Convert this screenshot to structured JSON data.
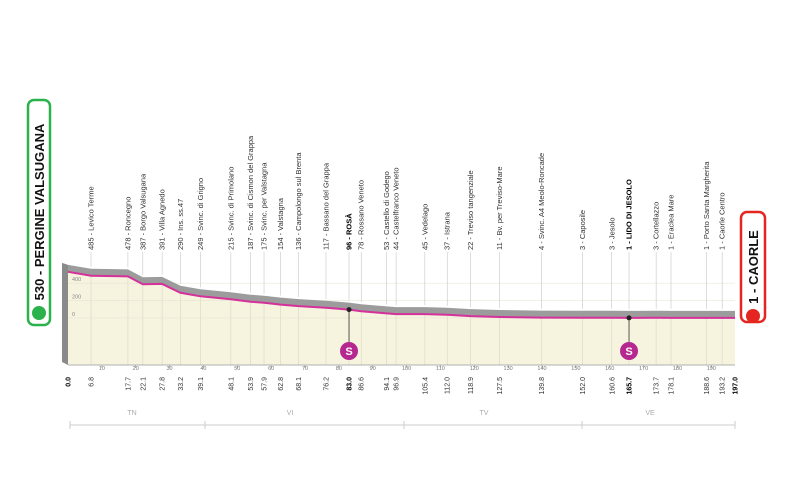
{
  "chart_data": {
    "type": "area",
    "x": [
      0,
      6.8,
      17.7,
      22.1,
      27.8,
      33.2,
      39.1,
      48.1,
      53.9,
      57.9,
      62.8,
      68.1,
      76.2,
      83.0,
      86.6,
      94.1,
      96.9,
      105.4,
      112.0,
      118.9,
      127.5,
      139.8,
      152.0,
      160.6,
      165.7,
      173.7,
      178.1,
      188.6,
      193.2,
      197.0
    ],
    "x_labels": [
      "0.0",
      "6.8",
      "17.7",
      "22.1",
      "27.8",
      "33.2",
      "39.1",
      "48.1",
      "53.9",
      "57.9",
      "62.8",
      "68.1",
      "76.2",
      "83.0",
      "86.6",
      "94.1",
      "96.9",
      "105.4",
      "112.0",
      "118.9",
      "127.5",
      "139.8",
      "152.0",
      "160.6",
      "165.7",
      "173.7",
      "178.1",
      "188.6",
      "193.2",
      "197.0"
    ],
    "values": [
      530,
      485,
      478,
      387,
      391,
      290,
      249,
      215,
      187,
      175,
      154,
      136,
      117,
      96,
      78,
      53,
      44,
      45,
      37,
      22,
      11,
      4,
      3,
      3,
      1,
      3,
      1,
      1,
      1,
      1
    ],
    "point_labels": [
      "530 - PERGINE VALSUGANA",
      "485 - Levico Terme",
      "478 - Roncegno",
      "387 - Borgo Valsugana",
      "391 - Villa Agnedo",
      "290 - Ins. ss.47",
      "249 - Svinc. di Grigno",
      "215 - Svinc. di Primolano",
      "187 - Svinc. di Cismon del Grappa",
      "175 - Svinc. per Valstagna",
      "154 - Valstagna",
      "136 - Campolongo sul Brenta",
      "117 - Bassano del Grappa",
      "96 - ROSÀ",
      "78 - Rossano Veneto",
      "53 - Castello di Godego",
      "44 - Castelfranco Veneto",
      "45 - Vedelago",
      "37 - Istrana",
      "22 - Treviso tangenziale",
      "11 - Bv. per Treviso-Mare",
      "4 - Svinc. A4 Meolo-Roncade",
      "3 - Caposile",
      "3 - Jesolo",
      "1 - LIDO DI JESOLO",
      "3 - Cortellazzo",
      "1 - Eraclea Mare",
      "1 - Porto Santa Margherita",
      "1 - Caorle Centro",
      "1 - CAORLE"
    ],
    "color": "#d4319b",
    "xlim": [
      0,
      197
    ],
    "ylim": [
      0,
      700
    ],
    "yticks": [
      0,
      200,
      400
    ],
    "minor_ticks": [
      10,
      20,
      30,
      40,
      50,
      60,
      70,
      80,
      90,
      100,
      110,
      120,
      130,
      140,
      150,
      160,
      170,
      180,
      190
    ],
    "sprints": [
      {
        "km": 83.0,
        "label": "S"
      },
      {
        "km": 165.7,
        "label": "S"
      }
    ],
    "regions": [
      "TN",
      "VI",
      "TV",
      "VE"
    ]
  }
}
